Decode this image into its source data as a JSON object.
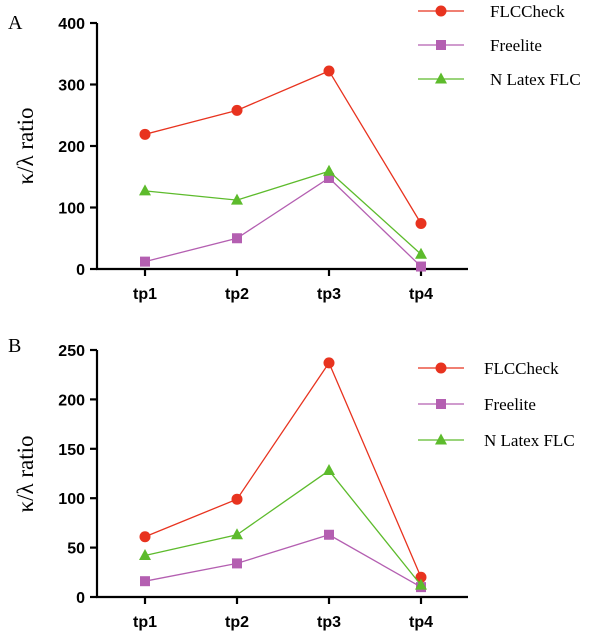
{
  "chart_data": [
    {
      "panel": "A",
      "type": "line",
      "categories": [
        "tp1",
        "tp2",
        "tp3",
        "tp4"
      ],
      "ylabel": "κ/λ ratio",
      "ylim": [
        0,
        400
      ],
      "yticks": [
        "0",
        "100",
        "200",
        "300",
        "400"
      ],
      "legend_position": "top-right",
      "series": [
        {
          "name": "FLCCheck",
          "values": [
            219,
            258,
            322,
            74
          ],
          "color": "#e8331f",
          "marker": "circle"
        },
        {
          "name": "Freelite",
          "values": [
            12,
            50,
            148,
            4
          ],
          "color": "#b45fb1",
          "marker": "square"
        },
        {
          "name": "N Latex FLC",
          "values": [
            127,
            112,
            159,
            24
          ],
          "color": "#5dbb2c",
          "marker": "triangle"
        }
      ]
    },
    {
      "panel": "B",
      "type": "line",
      "categories": [
        "tp1",
        "tp2",
        "tp3",
        "tp4"
      ],
      "ylabel": "κ/λ ratio",
      "ylim": [
        0,
        250
      ],
      "yticks": [
        "0",
        "50",
        "100",
        "150",
        "200",
        "250"
      ],
      "legend_position": "right",
      "series": [
        {
          "name": "FLCCheck",
          "values": [
            61,
            99,
            237,
            20
          ],
          "color": "#e8331f",
          "marker": "circle"
        },
        {
          "name": "Freelite",
          "values": [
            16,
            34,
            63,
            10
          ],
          "color": "#b45fb1",
          "marker": "square"
        },
        {
          "name": "N Latex FLC",
          "values": [
            42,
            63,
            128,
            12
          ],
          "color": "#5dbb2c",
          "marker": "triangle"
        }
      ]
    }
  ]
}
